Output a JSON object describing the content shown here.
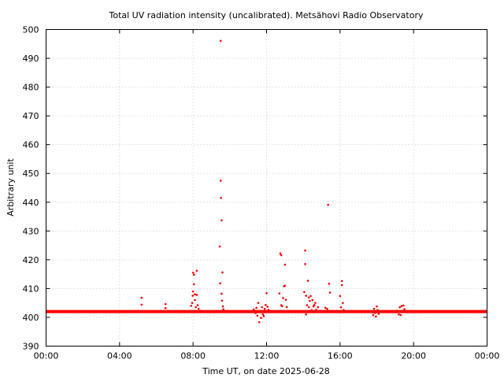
{
  "chart_data": {
    "type": "scatter",
    "title": "Total UV radiation intensity (uncalibrated). Metsähovi Radio Observatory",
    "xlabel": "Time UT, on date 2025-06-28",
    "ylabel": "Arbitrary unit",
    "xlim": [
      0,
      24
    ],
    "ylim": [
      390,
      500
    ],
    "x_ticks": [
      0,
      4,
      8,
      12,
      16,
      20,
      24
    ],
    "x_tick_labels": [
      "00:00",
      "04:00",
      "08:00",
      "12:00",
      "16:00",
      "20:00",
      "00:00"
    ],
    "y_ticks": [
      390,
      400,
      410,
      420,
      430,
      440,
      450,
      460,
      470,
      480,
      490,
      500
    ],
    "y_tick_labels": [
      "390",
      "400",
      "410",
      "420",
      "430",
      "440",
      "450",
      "460",
      "470",
      "480",
      "490",
      "500"
    ],
    "grid": true,
    "baseline_value": 402,
    "point_color": "#ff0000",
    "series": [
      {
        "x": [
          5.2,
          5.2,
          6.5,
          6.5,
          7.9,
          7.95,
          7.98,
          8.0,
          8.0,
          8.05,
          8.05,
          8.1,
          8.1,
          8.15,
          8.2,
          8.2,
          8.25,
          8.3,
          9.45,
          9.48,
          9.5,
          9.5,
          9.52,
          9.55,
          9.55,
          9.58,
          9.6,
          9.62,
          9.65,
          11.3,
          11.4,
          11.45,
          11.5,
          11.55,
          11.6,
          11.65,
          11.7,
          11.75,
          11.8,
          11.85,
          11.9,
          11.95,
          12.0,
          12.05,
          12.1,
          12.7,
          12.75,
          12.8,
          12.8,
          12.85,
          12.9,
          12.95,
          13.0,
          13.0,
          13.05,
          13.1,
          14.05,
          14.1,
          14.1,
          14.15,
          14.15,
          14.2,
          14.25,
          14.3,
          14.3,
          14.35,
          14.4,
          14.45,
          14.5,
          14.55,
          14.6,
          14.65,
          14.7,
          14.75,
          14.8,
          15.2,
          15.3,
          15.35,
          15.4,
          15.45,
          16.0,
          16.05,
          16.1,
          16.1,
          16.15,
          16.2,
          17.8,
          17.85,
          17.9,
          17.95,
          18.0,
          18.05,
          18.1,
          19.1,
          19.2,
          19.25,
          19.3,
          19.35,
          19.4,
          19.45,
          19.5
        ],
        "y": [
          406.8,
          404.4,
          404.6,
          403.2,
          404.0,
          405.0,
          407.5,
          415.5,
          409.0,
          414.8,
          411.5,
          408.0,
          406.0,
          403.5,
          416.2,
          407.8,
          404.2,
          403.0,
          424.6,
          411.8,
          496.1,
          447.5,
          441.5,
          433.7,
          408.2,
          405.8,
          415.6,
          403.8,
          402.8,
          402.7,
          401.5,
          403.3,
          400.6,
          405.0,
          398.3,
          401.8,
          399.8,
          403.5,
          401.0,
          400.4,
          402.9,
          404.3,
          408.4,
          403.7,
          402.6,
          408.3,
          422.2,
          421.6,
          404.2,
          403.9,
          406.7,
          410.8,
          418.3,
          411.0,
          406.1,
          403.6,
          408.8,
          423.2,
          418.5,
          407.5,
          401.0,
          404.2,
          412.7,
          406.9,
          403.5,
          405.7,
          407.4,
          402.5,
          406.0,
          403.8,
          404.3,
          405.0,
          402.6,
          401.8,
          403.5,
          403.3,
          402.9,
          439.1,
          411.7,
          408.6,
          407.4,
          403.5,
          412.6,
          411.2,
          405.0,
          402.5,
          400.8,
          403.0,
          401.5,
          400.3,
          403.8,
          402.5,
          401.2,
          402.3,
          401.0,
          403.5,
          400.8,
          403.9,
          402.2,
          404.1,
          402.8
        ]
      }
    ]
  }
}
